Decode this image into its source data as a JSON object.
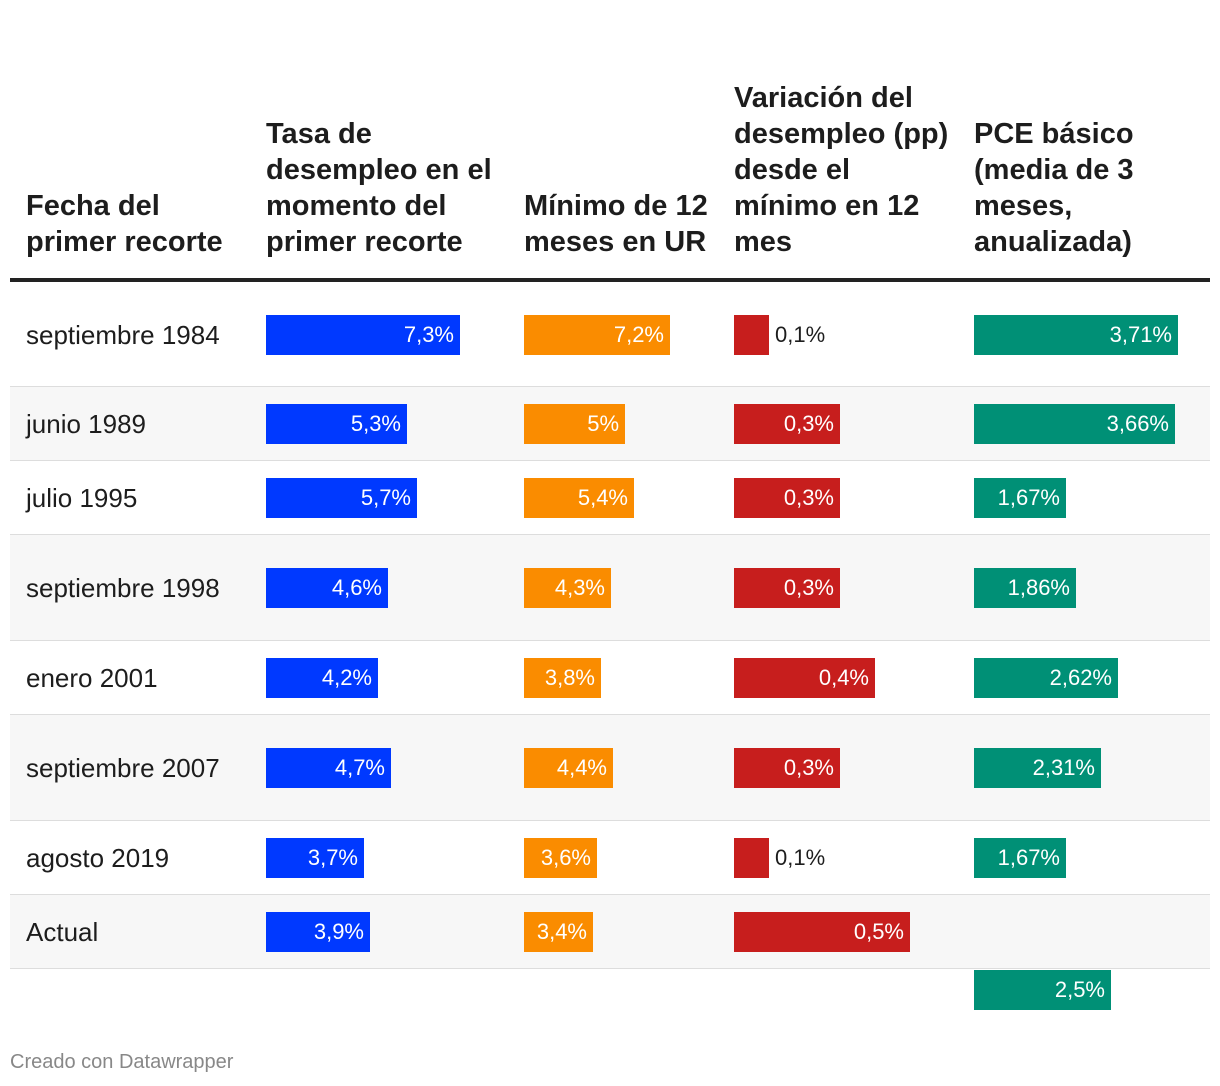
{
  "headers": [
    "Fecha del primer recorte",
    "Tasa de desempleo en el momento del primer recorte",
    "Mínimo de 12 meses en UR",
    "Variación del desempleo (pp) desde el mínimo en 12 mes",
    "PCE básico (media de 3 meses, anualizada)"
  ],
  "colors": {
    "col1": "#0039ff",
    "col2": "#fa8c00",
    "col3": "#c71e1d",
    "col4": "#009076"
  },
  "footer": "Creado con Datawrapper",
  "chart_data": {
    "type": "table",
    "columns": [
      "Fecha del primer recorte",
      "Tasa de desempleo en el momento del primer recorte",
      "Mínimo de 12 meses en UR",
      "Variación del desempleo (pp) desde el mínimo en 12 mes",
      "PCE básico (media de 3 meses, anualizada)"
    ],
    "rows": [
      {
        "date": "septiembre 1984",
        "values": [
          7.3,
          7.2,
          0.1,
          3.71
        ],
        "labels": [
          "7,3%",
          "7,2%",
          "0,1%",
          "3,71%"
        ]
      },
      {
        "date": "junio 1989",
        "values": [
          5.3,
          5.0,
          0.3,
          3.66
        ],
        "labels": [
          "5,3%",
          "5%",
          "0,3%",
          "3,66%"
        ]
      },
      {
        "date": "julio 1995",
        "values": [
          5.7,
          5.4,
          0.3,
          1.67
        ],
        "labels": [
          "5,7%",
          "5,4%",
          "0,3%",
          "1,67%"
        ]
      },
      {
        "date": "septiembre 1998",
        "values": [
          4.6,
          4.3,
          0.3,
          1.86
        ],
        "labels": [
          "4,6%",
          "4,3%",
          "0,3%",
          "1,86%"
        ]
      },
      {
        "date": "enero 2001",
        "values": [
          4.2,
          3.8,
          0.4,
          2.62
        ],
        "labels": [
          "4,2%",
          "3,8%",
          "0,4%",
          "2,62%"
        ]
      },
      {
        "date": "septiembre 2007",
        "values": [
          4.7,
          4.4,
          0.3,
          2.31
        ],
        "labels": [
          "4,7%",
          "4,4%",
          "0,3%",
          "2,31%"
        ]
      },
      {
        "date": "agosto 2019",
        "values": [
          3.7,
          3.6,
          0.1,
          1.67
        ],
        "labels": [
          "3,7%",
          "3,6%",
          "0,1%",
          "1,67%"
        ]
      },
      {
        "date": "Actual",
        "values": [
          3.9,
          3.4,
          0.5,
          2.5
        ],
        "labels": [
          "3,9%",
          "3,4%",
          "0,5%",
          "2,5%"
        ]
      }
    ]
  }
}
